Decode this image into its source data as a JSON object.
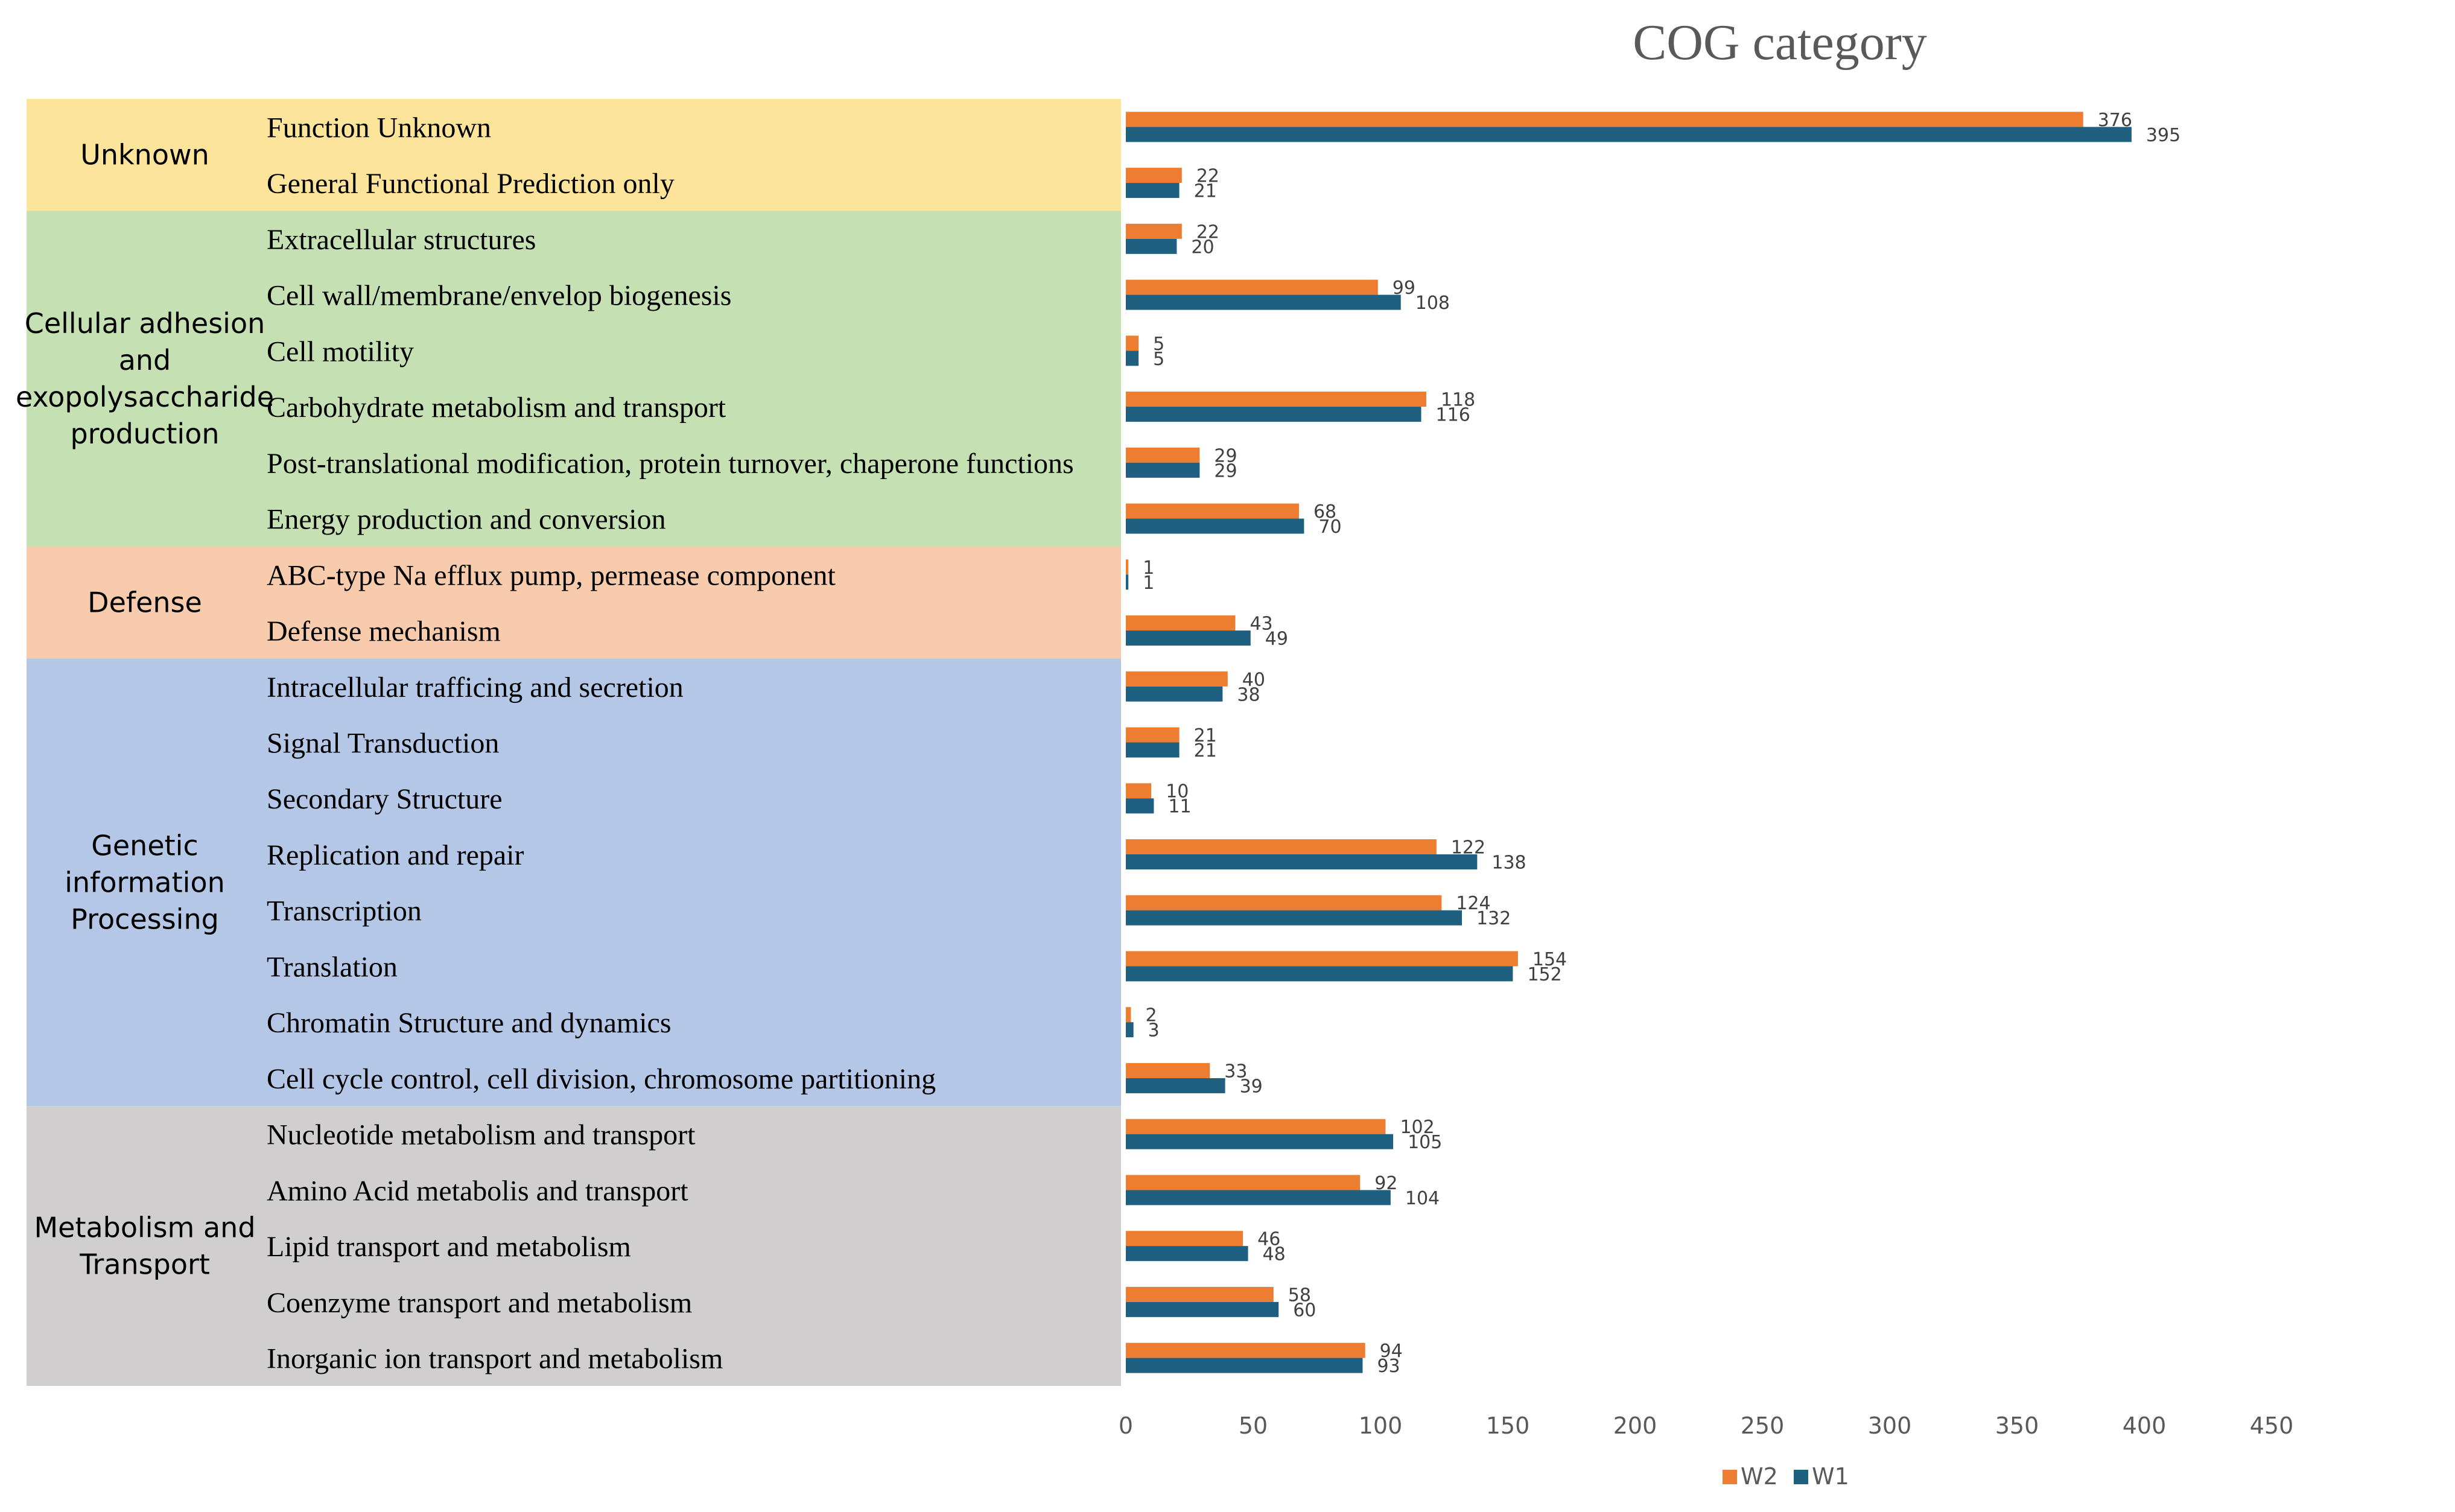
{
  "chart_data": {
    "type": "bar",
    "orientation": "horizontal",
    "title": "COG category",
    "xlabel": "",
    "ylabel": "",
    "xlim": [
      0,
      450
    ],
    "xticks": [
      "0",
      "50",
      "100",
      "150",
      "200",
      "250",
      "300",
      "350",
      "400",
      "450"
    ],
    "grid": false,
    "legend_position": "bottom-center",
    "colors": {
      "W2": "#ED7D31",
      "W1": "#1F5F7F"
    },
    "groups": [
      {
        "name": "Unknown",
        "color": "#FDE49B",
        "rows": 2
      },
      {
        "name": "Cellular adhesion and exopolysaccharide production",
        "lines": [
          "Cellular adhesion",
          "and",
          "exopolysaccharide",
          "production"
        ],
        "color": "#C5E0B3",
        "rows": 6
      },
      {
        "name": "Defense",
        "color": "#F8CBAD",
        "rows": 2
      },
      {
        "name": "Genetic information Processing",
        "lines": [
          "Genetic",
          "information",
          "Processing"
        ],
        "color": "#B4C7E7",
        "rows": 8
      },
      {
        "name": "Metabolism and Transport",
        "lines": [
          "Metabolism and",
          "Transport"
        ],
        "color": "#D0CECE",
        "rows": 5
      }
    ],
    "categories": [
      "Function Unknown",
      "General Functional Prediction only",
      "Extracellular structures",
      "Cell wall/membrane/envelop biogenesis",
      "Cell motility",
      "Carbohydrate metabolism and transport",
      "Post-translational modification, protein turnover, chaperone functions",
      "Energy production and conversion",
      "ABC-type Na efflux pump, permease component",
      "Defense mechanism",
      "Intracellular trafficing and secretion",
      "Signal Transduction",
      "Secondary Structure",
      "Replication and repair",
      "Transcription",
      "Translation",
      "Chromatin Structure and dynamics",
      "Cell cycle control, cell division, chromosome partitioning",
      "Nucleotide metabolism and transport",
      "Amino Acid metabolis and transport",
      "Lipid transport and metabolism",
      "Coenzyme transport and metabolism",
      "Inorganic ion transport and metabolism"
    ],
    "series": [
      {
        "name": "W2",
        "values": [
          376,
          22,
          22,
          99,
          5,
          118,
          29,
          68,
          1,
          43,
          40,
          21,
          10,
          122,
          124,
          154,
          2,
          33,
          102,
          92,
          46,
          58,
          94
        ]
      },
      {
        "name": "W1",
        "values": [
          395,
          21,
          20,
          108,
          5,
          116,
          29,
          70,
          1,
          49,
          38,
          21,
          11,
          138,
          132,
          152,
          3,
          39,
          105,
          104,
          48,
          60,
          93
        ]
      }
    ]
  }
}
